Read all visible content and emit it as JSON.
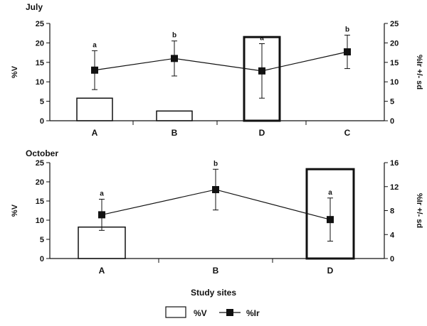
{
  "chart_data": [
    {
      "type": "bar+line",
      "title": "July",
      "categories": [
        "A",
        "B",
        "D",
        "C"
      ],
      "ylabel": "%V",
      "ylim": [
        0,
        25
      ],
      "yticks": [
        0,
        5,
        10,
        15,
        20,
        25
      ],
      "y2label": "%Ir +/- sd",
      "y2lim": [
        0,
        25
      ],
      "y2ticks": [
        0,
        5,
        10,
        15,
        20,
        25
      ],
      "series": [
        {
          "name": "%V",
          "kind": "bar",
          "axis": "left",
          "values": [
            5.8,
            2.5,
            21.5,
            0
          ]
        },
        {
          "name": "%Ir",
          "kind": "line",
          "axis": "right",
          "values": [
            13.0,
            16.0,
            12.8,
            17.7
          ],
          "sd": [
            5.0,
            4.5,
            7.0,
            4.3
          ],
          "labels": [
            "a",
            "b",
            "a",
            "b"
          ]
        }
      ]
    },
    {
      "type": "bar+line",
      "title": "October",
      "categories": [
        "A",
        "B",
        "D"
      ],
      "ylabel": "%V",
      "ylim": [
        0,
        25
      ],
      "yticks": [
        0,
        5,
        10,
        15,
        20,
        25
      ],
      "y2label": "%Ir +/- sd",
      "y2lim": [
        0,
        16
      ],
      "y2ticks": [
        0,
        4,
        8,
        12,
        16
      ],
      "series": [
        {
          "name": "%V",
          "kind": "bar",
          "axis": "left",
          "values": [
            8.2,
            0,
            23.3
          ]
        },
        {
          "name": "%Ir",
          "kind": "line",
          "axis": "right",
          "values": [
            7.3,
            11.5,
            6.5
          ],
          "sd": [
            2.6,
            3.4,
            3.6
          ],
          "labels": [
            "a",
            "b",
            "a"
          ]
        }
      ]
    }
  ],
  "shared_xlabel": "Study sites",
  "legend": {
    "bar_label": "%V",
    "line_label": "%Ir"
  }
}
